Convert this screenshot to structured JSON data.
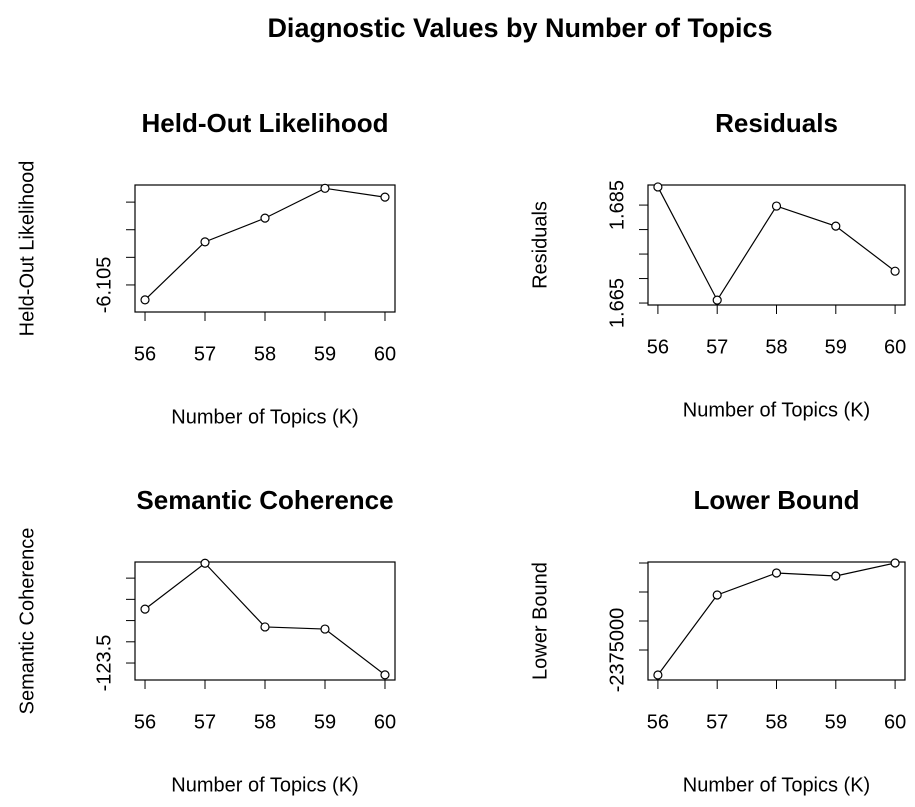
{
  "title": "Diagnostic Values by Number of Topics",
  "chart_data": [
    {
      "type": "line",
      "title": "Held-Out Likelihood",
      "x_label": "Number of Topics (K)",
      "y_label": "Held-Out Likelihood",
      "x": [
        56,
        57,
        58,
        59,
        60
      ],
      "values": [
        -6.1077,
        -6.0972,
        -6.0929,
        -6.0875,
        -6.0891
      ],
      "color": "#000000",
      "xlim": [
        55.833,
        60.167
      ],
      "xticks": [
        56,
        57,
        58,
        59,
        60
      ],
      "ylim": [
        -6.1099,
        -6.0869
      ],
      "yticks": [
        -6.105
      ],
      "yticks_minor": [
        -6.1,
        -6.095,
        -6.09
      ]
    },
    {
      "type": "line",
      "title": "Residuals",
      "x_label": "Number of Topics (K)",
      "y_label": "Residuals",
      "x": [
        56,
        57,
        58,
        59,
        60
      ],
      "values": [
        1.6887,
        1.6656,
        1.6848,
        1.6807,
        1.6715
      ],
      "color": "#000000",
      "xlim": [
        55.833,
        60.167
      ],
      "xticks": [
        56,
        57,
        58,
        59,
        60
      ],
      "ylim": [
        1.6646,
        1.6891
      ],
      "yticks": [
        1.665,
        1.685
      ],
      "yticks_minor": [
        1.67,
        1.675,
        1.68
      ]
    },
    {
      "type": "line",
      "title": "Semantic Coherence",
      "x_label": "Number of Topics (K)",
      "y_label": "Semantic Coherence",
      "x": [
        56,
        57,
        58,
        59,
        60
      ],
      "values": [
        -122.23,
        -121.15,
        -122.65,
        -122.7,
        -123.78
      ],
      "color": "#000000",
      "xlim": [
        55.833,
        60.167
      ],
      "xticks": [
        56,
        57,
        58,
        59,
        60
      ],
      "ylim": [
        -123.9,
        -121.12
      ],
      "yticks": [
        -123.5
      ],
      "yticks_minor": [
        -123,
        -122.5,
        -122,
        -121.5
      ]
    },
    {
      "type": "line",
      "title": "Lower Bound",
      "x_label": "Number of Topics (K)",
      "y_label": "Lower Bound",
      "x": [
        56,
        57,
        58,
        59,
        60
      ],
      "values": [
        -2379310,
        -2365517,
        -2361724,
        -2362241,
        -2360000
      ],
      "color": "#000000",
      "xlim": [
        55.833,
        60.167
      ],
      "xticks": [
        56,
        57,
        58,
        59,
        60
      ],
      "ylim": [
        -2380172,
        -2359828
      ],
      "yticks": [
        -2375000
      ],
      "yticks_minor": [
        -2370000,
        -2365000,
        -2360000
      ]
    }
  ]
}
